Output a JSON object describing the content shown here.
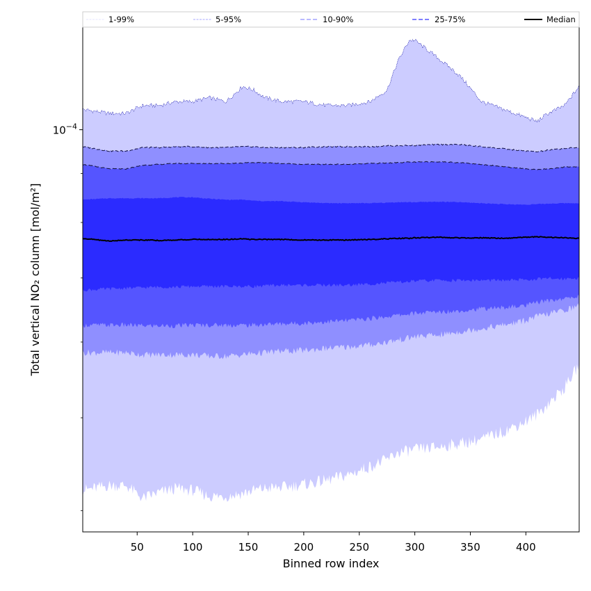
{
  "chart_data": {
    "type": "area",
    "xlabel": "Binned row index",
    "ylabel": "Total vertical NO₂ column [mol/m²]",
    "xlim": [
      1,
      448
    ],
    "ylim": [
      3.8e-05,
      0.000128
    ],
    "yscale": "log",
    "x_ticks": [
      50,
      100,
      150,
      200,
      250,
      300,
      350,
      400
    ],
    "y_ticks": [
      {
        "value": 0.0001,
        "label": "10^-4"
      }
    ],
    "legend_position": "top",
    "x_ref": [
      1,
      25,
      40,
      55,
      70,
      85,
      100,
      115,
      130,
      145,
      155,
      165,
      180,
      200,
      220,
      240,
      260,
      275,
      285,
      295,
      300,
      320,
      340,
      360,
      380,
      400,
      410,
      420,
      435,
      448
    ],
    "bands": [
      {
        "name": "1-99%",
        "color": "#ccccff",
        "lower": [
          4.2e-05,
          4.25e-05,
          4.25e-05,
          4.12e-05,
          4.18e-05,
          4.22e-05,
          4.2e-05,
          4.14e-05,
          4.14e-05,
          4.17e-05,
          4.2e-05,
          4.22e-05,
          4.23e-05,
          4.26e-05,
          4.3e-05,
          4.36e-05,
          4.45e-05,
          4.52e-05,
          4.6e-05,
          4.62e-05,
          4.63e-05,
          4.66e-05,
          4.7e-05,
          4.75e-05,
          4.84e-05,
          4.96e-05,
          5.04e-05,
          5.17e-05,
          5.38e-05,
          5.68e-05
        ],
        "upper": [
          0.000105,
          0.000104,
          0.000104,
          0.000106,
          0.000106,
          0.000107,
          0.000107,
          0.000108,
          0.000107,
          0.000111,
          0.00011,
          0.000108,
          0.000107,
          0.000107,
          0.000106,
          0.000106,
          0.000107,
          0.00011,
          0.000118,
          0.000124,
          0.000124,
          0.000119,
          0.000114,
          0.000107,
          0.000105,
          0.000103,
          0.000102,
          0.000104,
          0.000106,
          0.000111
        ]
      },
      {
        "name": "5-95%",
        "color": "#8f8fff",
        "lower": [
          5.85e-05,
          5.85e-05,
          5.85e-05,
          5.82e-05,
          5.82e-05,
          5.82e-05,
          5.82e-05,
          5.8e-05,
          5.8e-05,
          5.82e-05,
          5.84e-05,
          5.85e-05,
          5.87e-05,
          5.88e-05,
          5.91e-05,
          5.93e-05,
          5.96e-05,
          6e-05,
          6.03e-05,
          6.06e-05,
          6.08e-05,
          6.1e-05,
          6.15e-05,
          6.2e-05,
          6.25e-05,
          6.32e-05,
          6.38e-05,
          6.42e-05,
          6.48e-05,
          6.55e-05
        ],
        "upper": [
          9.6e-05,
          9.5e-05,
          9.5e-05,
          9.58e-05,
          9.58e-05,
          9.6e-05,
          9.6e-05,
          9.58e-05,
          9.58e-05,
          9.6e-05,
          9.6e-05,
          9.58e-05,
          9.58e-05,
          9.58e-05,
          9.6e-05,
          9.6e-05,
          9.6e-05,
          9.62e-05,
          9.62e-05,
          9.63e-05,
          9.63e-05,
          9.65e-05,
          9.65e-05,
          9.6e-05,
          9.55e-05,
          9.5e-05,
          9.48e-05,
          9.52e-05,
          9.56e-05,
          9.58e-05
        ]
      },
      {
        "name": "10-90%",
        "color": "#5555ff",
        "lower": [
          6.25e-05,
          6.25e-05,
          6.25e-05,
          6.24e-05,
          6.24e-05,
          6.24e-05,
          6.25e-05,
          6.25e-05,
          6.25e-05,
          6.25e-05,
          6.25e-05,
          6.26e-05,
          6.27e-05,
          6.28e-05,
          6.3e-05,
          6.32e-05,
          6.35e-05,
          6.38e-05,
          6.4e-05,
          6.42e-05,
          6.43e-05,
          6.45e-05,
          6.47e-05,
          6.5e-05,
          6.52e-05,
          6.55e-05,
          6.6e-05,
          6.63e-05,
          6.66e-05,
          6.7e-05
        ],
        "upper": [
          9.2e-05,
          9.1e-05,
          9.1e-05,
          9.18e-05,
          9.2e-05,
          9.22e-05,
          9.22e-05,
          9.22e-05,
          9.22e-05,
          9.23e-05,
          9.24e-05,
          9.24e-05,
          9.22e-05,
          9.2e-05,
          9.2e-05,
          9.2e-05,
          9.22e-05,
          9.23e-05,
          9.24e-05,
          9.25e-05,
          9.25e-05,
          9.26e-05,
          9.24e-05,
          9.2e-05,
          9.15e-05,
          9.1e-05,
          9.08e-05,
          9.1e-05,
          9.14e-05,
          9.15e-05
        ]
      },
      {
        "name": "25-75%",
        "color": "#2b2bff",
        "lower": [
          6.8e-05,
          6.82e-05,
          6.83e-05,
          6.84e-05,
          6.85e-05,
          6.85e-05,
          6.86e-05,
          6.86e-05,
          6.86e-05,
          6.86e-05,
          6.86e-05,
          6.87e-05,
          6.88e-05,
          6.88e-05,
          6.88e-05,
          6.88e-05,
          6.9e-05,
          6.92e-05,
          6.93e-05,
          6.94e-05,
          6.95e-05,
          6.96e-05,
          6.96e-05,
          6.96e-05,
          6.96e-05,
          6.97e-05,
          6.98e-05,
          6.99e-05,
          6.99e-05,
          7e-05
        ],
        "upper": [
          8.45e-05,
          8.48e-05,
          8.48e-05,
          8.48e-05,
          8.48e-05,
          8.5e-05,
          8.5e-05,
          8.47e-05,
          8.45e-05,
          8.45e-05,
          8.43e-05,
          8.42e-05,
          8.42e-05,
          8.4e-05,
          8.38e-05,
          8.38e-05,
          8.38e-05,
          8.39e-05,
          8.4e-05,
          8.4e-05,
          8.4e-05,
          8.41e-05,
          8.4e-05,
          8.38e-05,
          8.36e-05,
          8.35e-05,
          8.36e-05,
          8.37e-05,
          8.38e-05,
          8.38e-05
        ]
      }
    ],
    "median": {
      "name": "Median",
      "color": "#000000",
      "values": [
        7.7e-05,
        7.65e-05,
        7.67e-05,
        7.67e-05,
        7.66e-05,
        7.67e-05,
        7.68e-05,
        7.68e-05,
        7.68e-05,
        7.69e-05,
        7.68e-05,
        7.68e-05,
        7.68e-05,
        7.67e-05,
        7.67e-05,
        7.67e-05,
        7.68e-05,
        7.69e-05,
        7.7e-05,
        7.7e-05,
        7.71e-05,
        7.72e-05,
        7.71e-05,
        7.71e-05,
        7.7e-05,
        7.72e-05,
        7.73e-05,
        7.72e-05,
        7.71e-05,
        7.7e-05
      ]
    },
    "legend": [
      {
        "label": "1-99%",
        "color": "#ccccff",
        "dash": "3,1.5",
        "width": 0.6
      },
      {
        "label": "5-95%",
        "color": "#8f8fff",
        "dash": "3,1.5",
        "width": 0.7
      },
      {
        "label": "10-90%",
        "color": "#8f8fff",
        "dash": "6,3",
        "width": 1.2
      },
      {
        "label": "25-75%",
        "color": "#5555ff",
        "dash": "6,3",
        "width": 1.4
      },
      {
        "label": "Median",
        "color": "#000000",
        "dash": "",
        "width": 2
      }
    ]
  }
}
